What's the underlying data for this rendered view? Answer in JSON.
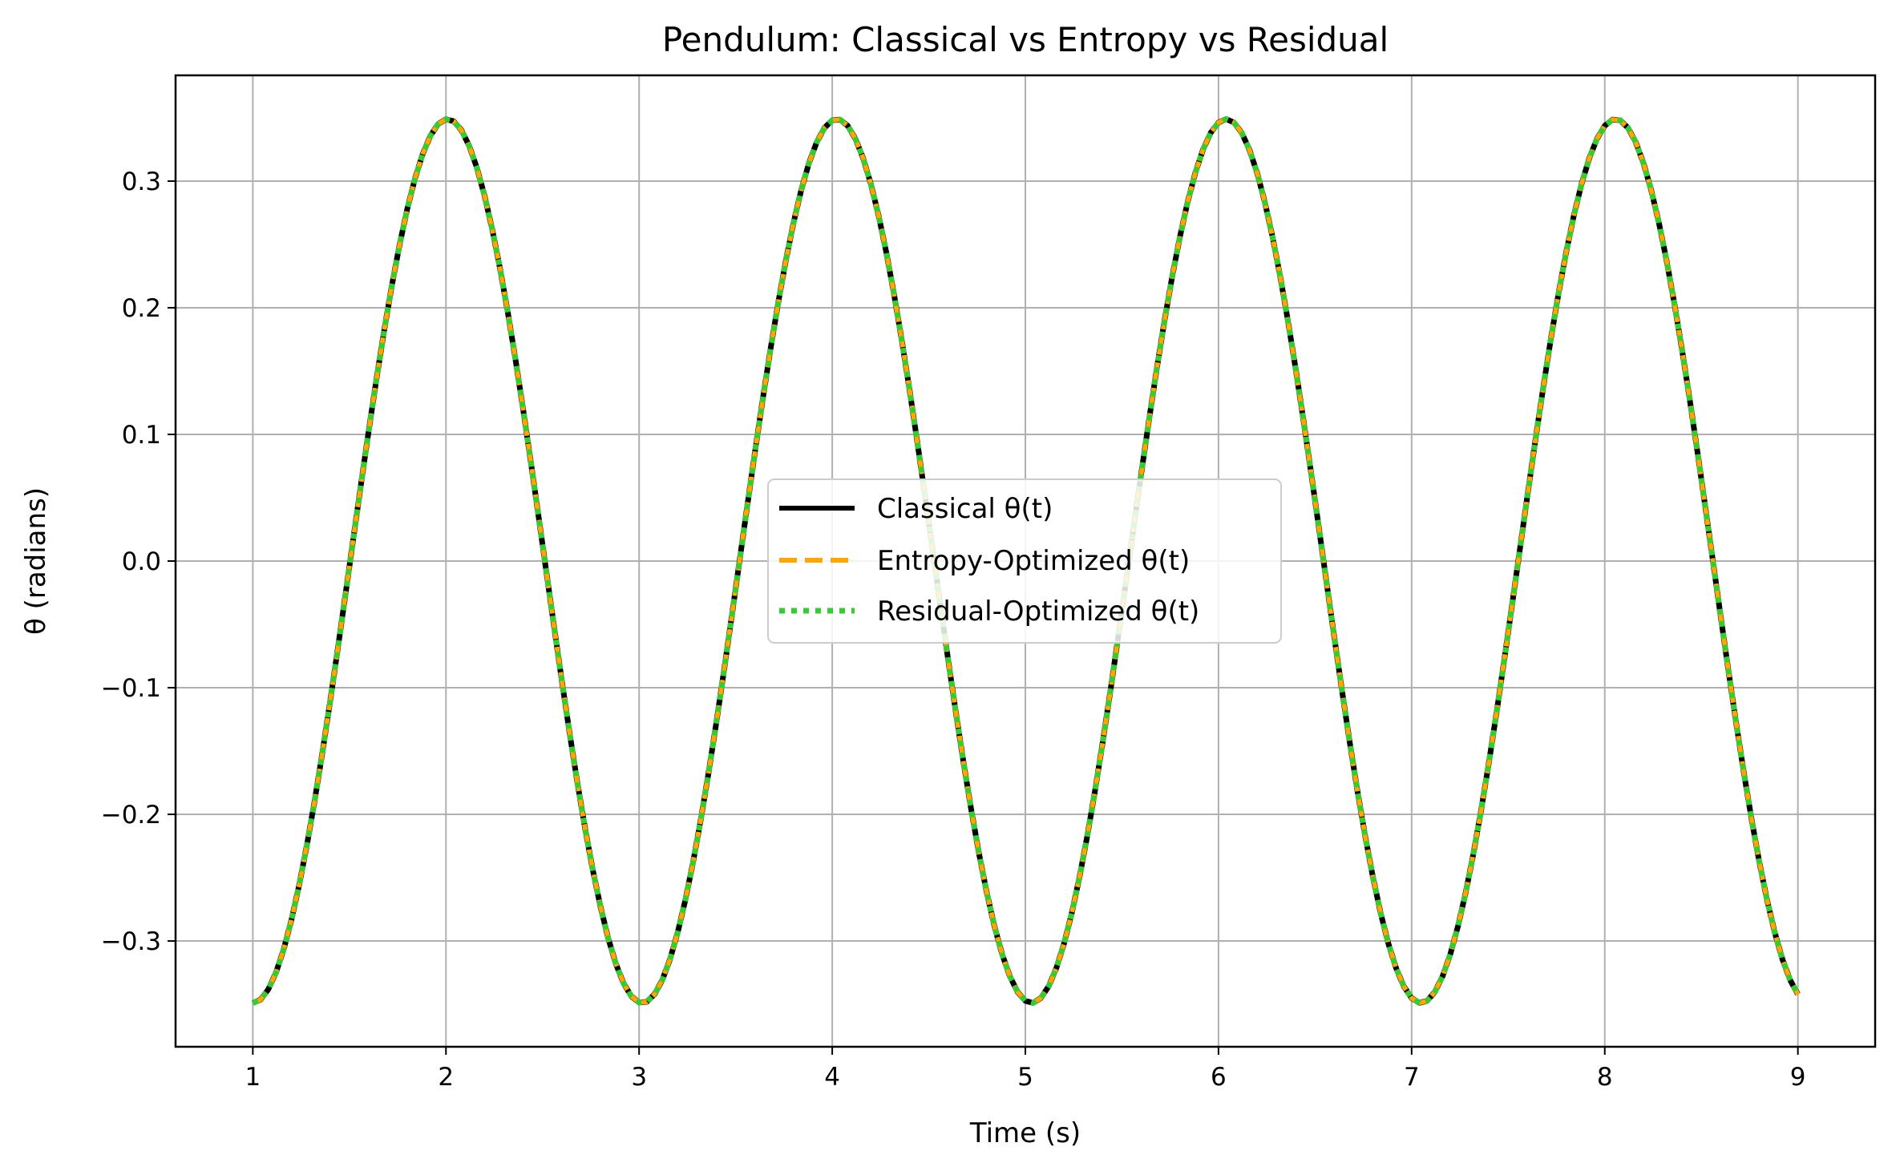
{
  "chart_data": {
    "type": "line",
    "title": "Pendulum: Classical vs Entropy vs Residual",
    "xlabel": "Time (s)",
    "ylabel": "θ (radians)",
    "xlim": [
      0.6,
      9.4
    ],
    "ylim": [
      -0.3835,
      0.3835
    ],
    "x_ticks": [
      1,
      2,
      3,
      4,
      5,
      6,
      7,
      8,
      9
    ],
    "x_tick_labels": [
      "1",
      "2",
      "3",
      "4",
      "5",
      "6",
      "7",
      "8",
      "9"
    ],
    "y_ticks": [
      -0.3,
      -0.2,
      -0.1,
      0.0,
      0.1,
      0.2,
      0.3
    ],
    "y_tick_labels": [
      "−0.3",
      "−0.2",
      "−0.1",
      "0.0",
      "0.1",
      "0.2",
      "0.3"
    ],
    "grid": true,
    "legend_position": "center",
    "x": {
      "start": 1,
      "end": 9,
      "step": 0.04
    },
    "series": [
      {
        "name": "Classical θ(t)",
        "model": {
          "amplitude": 0.349,
          "period": 2.016,
          "phase_shift": 0.0
        },
        "color": "#000000",
        "line_style": "solid"
      },
      {
        "name": "Entropy-Optimized θ(t)",
        "model": {
          "amplitude": 0.349,
          "period": 2.016,
          "phase_shift": 0.0
        },
        "color": "#FFA500",
        "line_style": "dashed"
      },
      {
        "name": "Residual-Optimized θ(t)",
        "model": {
          "amplitude": 0.349,
          "period": 2.016,
          "phase_shift": 0.0
        },
        "color": "#32CD32",
        "line_style": "dotted"
      }
    ]
  }
}
